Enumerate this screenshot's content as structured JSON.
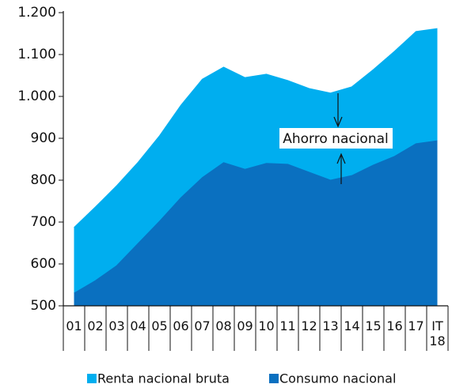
{
  "chart_data": {
    "type": "area",
    "categories": [
      "01",
      "02",
      "03",
      "04",
      "05",
      "06",
      "07",
      "08",
      "09",
      "10",
      "11",
      "12",
      "13",
      "14",
      "15",
      "16",
      "17",
      "IT 18"
    ],
    "series": [
      {
        "name": "Renta nacional bruta",
        "color": "#00aeef",
        "values": [
          687,
          736,
          787,
          843,
          906,
          979,
          1041,
          1070,
          1045,
          1053,
          1038,
          1019,
          1008,
          1023,
          1064,
          1108,
          1155,
          1162
        ]
      },
      {
        "name": "Consumo nacional",
        "color": "#0a70c0",
        "values": [
          530,
          560,
          596,
          649,
          702,
          758,
          806,
          842,
          826,
          840,
          838,
          819,
          800,
          811,
          836,
          857,
          887,
          894
        ]
      }
    ],
    "ylim": [
      500,
      1200
    ],
    "yticks": [
      500,
      600,
      700,
      800,
      900,
      {
        "value": 1000,
        "label": "1.000"
      },
      {
        "value": 1100,
        "label": "1.100"
      },
      {
        "value": 1200,
        "label": "1.200"
      }
    ],
    "annotation": "Ahorro nacional",
    "legend": "bottom"
  }
}
